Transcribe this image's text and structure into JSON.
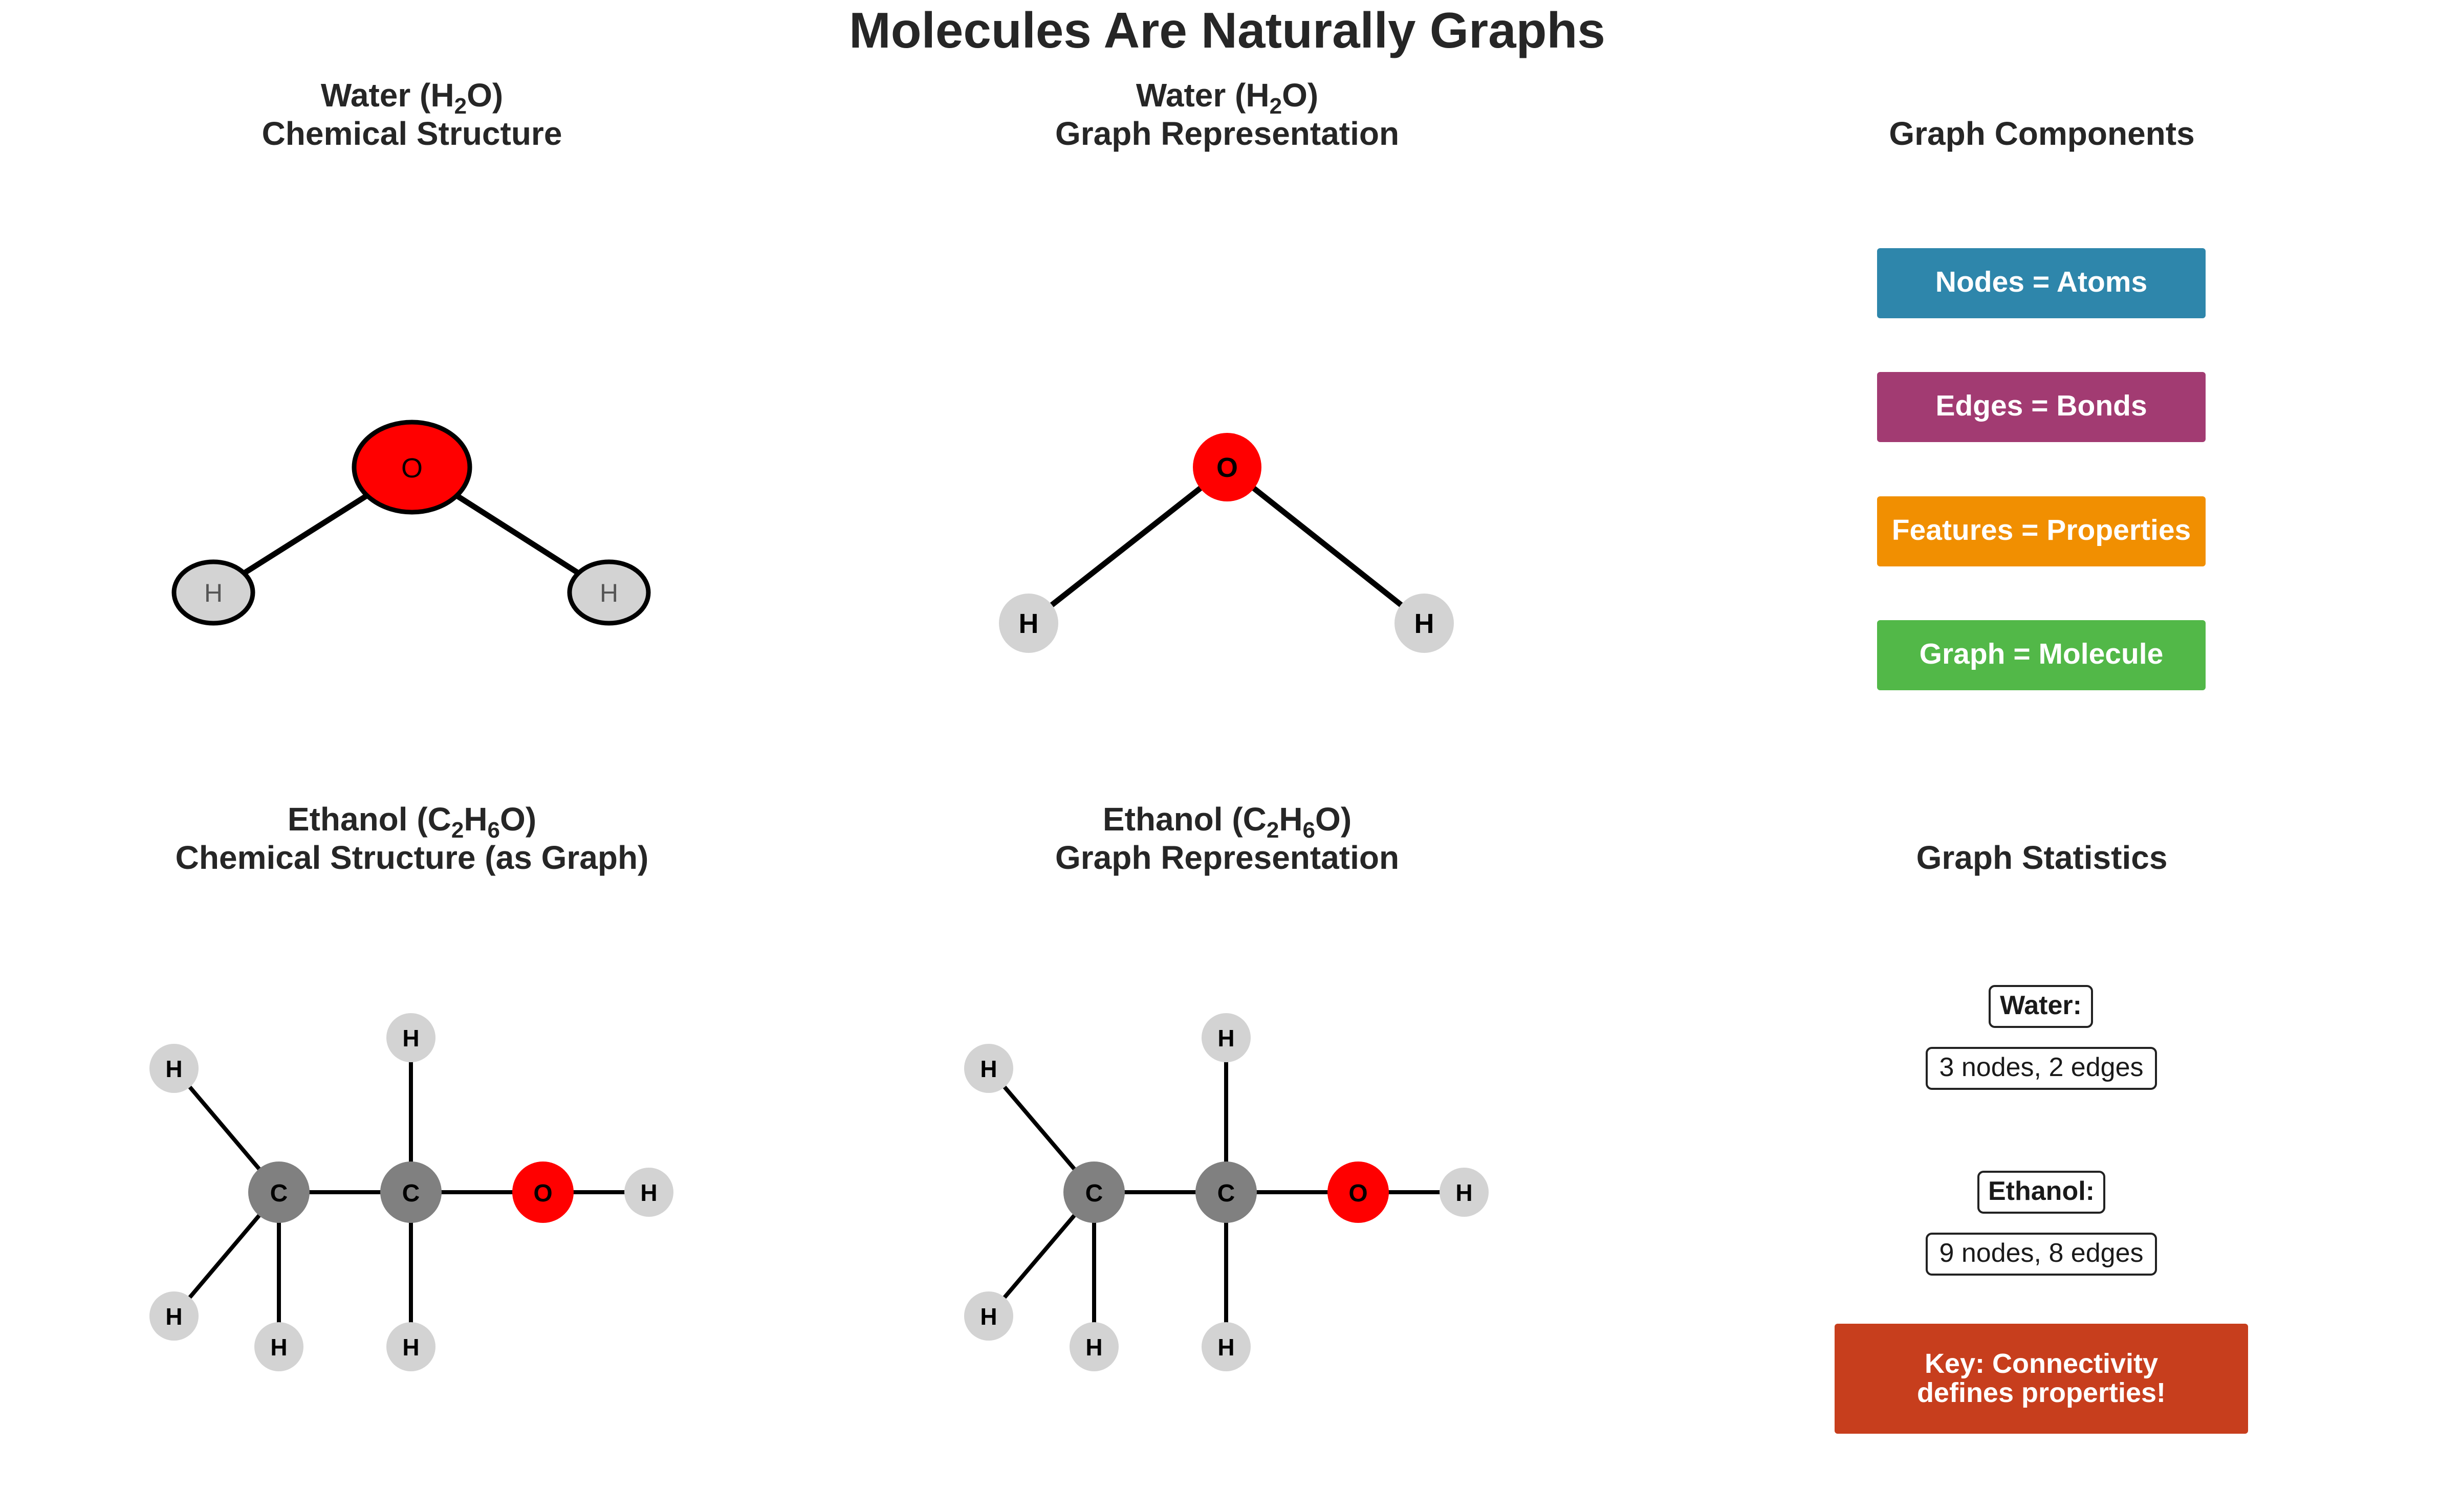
{
  "figure_title": "Molecules Are Naturally Graphs",
  "panels": {
    "water_structure": {
      "line1_pre": "Water (H",
      "line1_sub": "2",
      "line1_post": "O)",
      "line2": "Chemical Structure"
    },
    "water_graph": {
      "line1_pre": "Water (H",
      "line1_sub": "2",
      "line1_post": "O)",
      "line2": "Graph Representation"
    },
    "components": {
      "title": "Graph Components"
    },
    "ethanol_structure": {
      "line1_pre": "Ethanol (C",
      "line1_sub1": "2",
      "line1_mid": "H",
      "line1_sub2": "6",
      "line1_post": "O)",
      "line2": "Chemical Structure (as Graph)"
    },
    "ethanol_graph": {
      "line1_pre": "Ethanol (C",
      "line1_sub1": "2",
      "line1_mid": "H",
      "line1_sub2": "6",
      "line1_post": "O)",
      "line2": "Graph Representation"
    },
    "statistics": {
      "title": "Graph Statistics"
    }
  },
  "atoms": {
    "O": {
      "label": "O",
      "color": "#ff0000"
    },
    "H": {
      "label": "H",
      "color": "#d3d3d3"
    },
    "C": {
      "label": "C",
      "color": "#808080"
    }
  },
  "water": {
    "atoms": [
      "O",
      "H",
      "H"
    ],
    "bonds": [
      [
        0,
        1
      ],
      [
        0,
        2
      ]
    ]
  },
  "ethanol": {
    "atoms": [
      "C",
      "C",
      "O",
      "H",
      "H",
      "H",
      "H",
      "H",
      "H"
    ],
    "bonds": [
      [
        0,
        1
      ],
      [
        1,
        2
      ],
      [
        2,
        8
      ],
      [
        0,
        3
      ],
      [
        0,
        4
      ],
      [
        0,
        5
      ],
      [
        1,
        6
      ],
      [
        1,
        7
      ]
    ]
  },
  "components": [
    {
      "label": "Nodes = Atoms",
      "color": "#2e86ab"
    },
    {
      "label": "Edges = Bonds",
      "color": "#a23b72"
    },
    {
      "label": "Features = Properties",
      "color": "#f18f01"
    },
    {
      "label": "Graph = Molecule",
      "color": "#52b848"
    }
  ],
  "statistics": {
    "water_label": "Water:",
    "water_value": "3 nodes, 2 edges",
    "ethanol_label": "Ethanol:",
    "ethanol_value": "9 nodes, 8 edges",
    "key_line1": "Key: Connectivity",
    "key_line2": "defines properties!",
    "key_color": "#c73e1d"
  }
}
